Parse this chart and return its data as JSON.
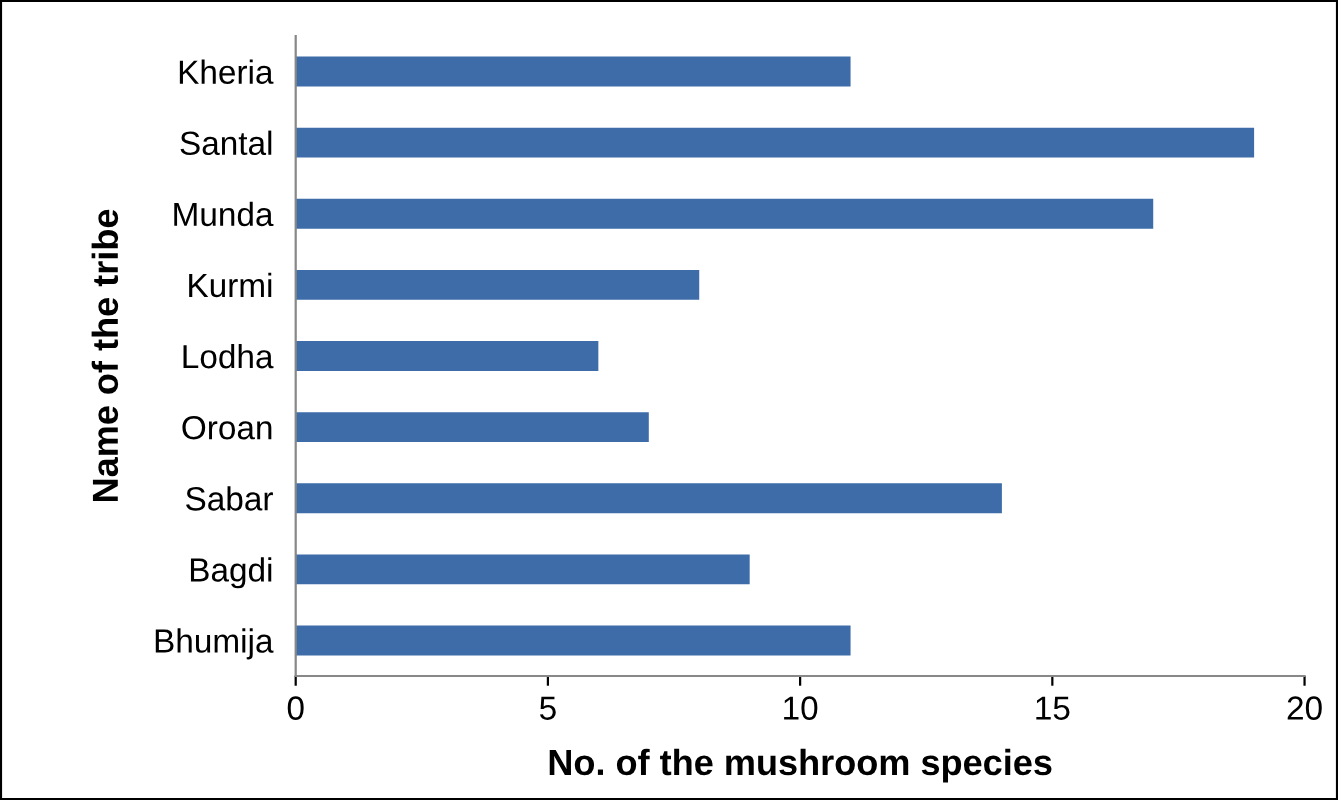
{
  "chart_data": {
    "type": "bar",
    "orientation": "horizontal",
    "categories": [
      "Kheria",
      "Santal",
      "Munda",
      "Kurmi",
      "Lodha",
      "Oroan",
      "Sabar",
      "Bagdi",
      "Bhumija"
    ],
    "values": [
      11,
      19,
      17,
      8,
      6,
      7,
      14,
      9,
      11
    ],
    "color": "#3d6ca8",
    "xlabel": "No. of the mushroom species",
    "ylabel": "Name of the tribe",
    "xlim": [
      0,
      20
    ],
    "xticks": [
      0,
      5,
      10,
      15,
      20
    ],
    "grid": false,
    "legend": false
  }
}
